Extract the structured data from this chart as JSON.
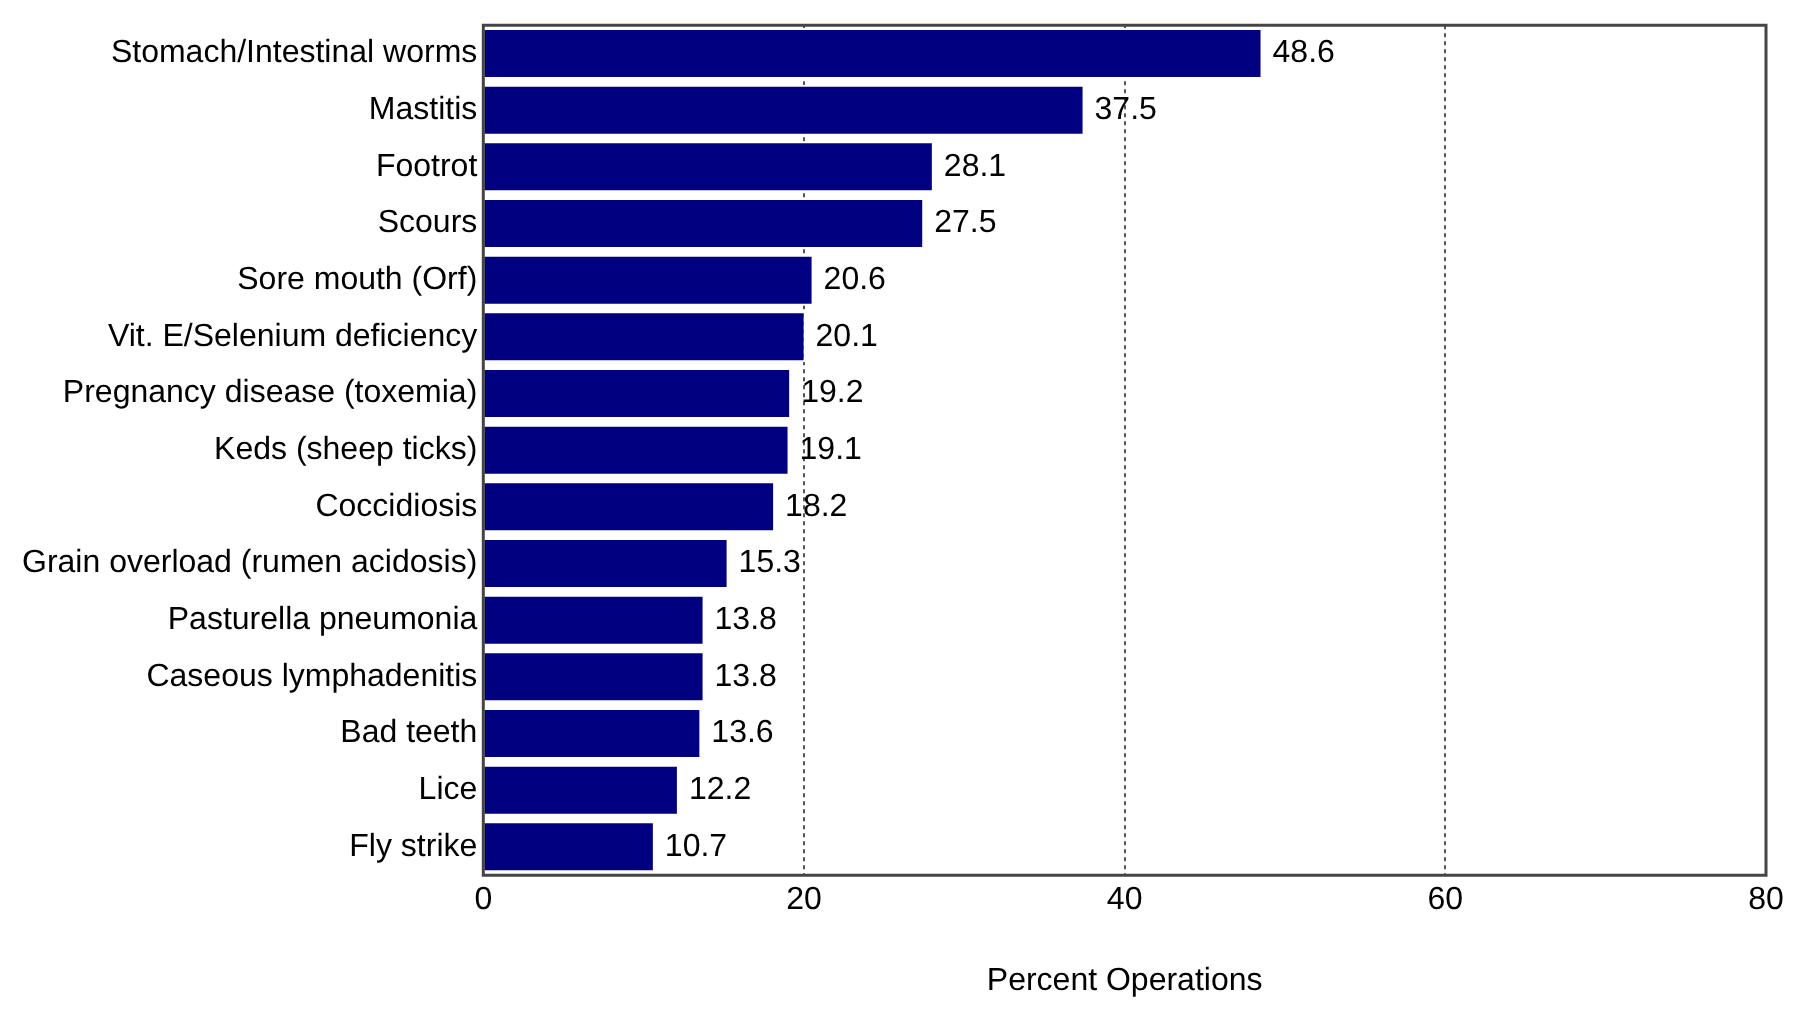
{
  "chart_data": {
    "type": "bar",
    "orientation": "horizontal",
    "xlabel": "Percent Operations",
    "categories": [
      "Stomach/Intestinal worms",
      "Mastitis",
      "Footrot",
      "Scours",
      "Sore mouth (Orf)",
      "Vit. E/Selenium deficiency",
      "Pregnancy disease (toxemia)",
      "Keds (sheep ticks)",
      "Coccidiosis",
      "Grain overload (rumen acidosis)",
      "Pasturella pneumonia",
      "Caseous lymphadenitis",
      "Bad teeth",
      "Lice",
      "Fly strike"
    ],
    "values": [
      48.6,
      37.5,
      28.1,
      27.5,
      20.6,
      20.1,
      19.2,
      19.1,
      18.2,
      15.3,
      13.8,
      13.8,
      13.6,
      12.2,
      10.7
    ],
    "color": "#000080",
    "xlim": [
      0,
      80
    ],
    "xticks": [
      0,
      20,
      40,
      60,
      80
    ],
    "grid": "x",
    "data_labels": true,
    "legend": false
  }
}
